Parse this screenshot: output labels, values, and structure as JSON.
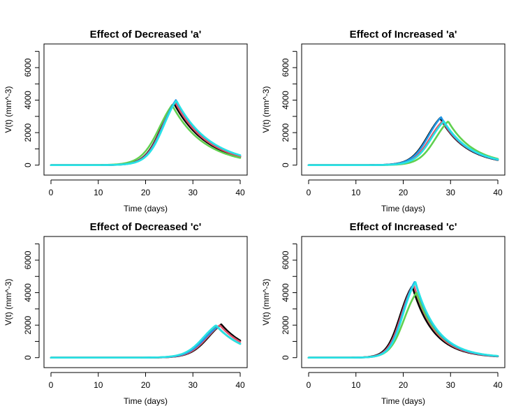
{
  "colors": {
    "black": "#000000",
    "red": "#DF536B",
    "green": "#61D04F",
    "blue": "#2297E6",
    "cyan": "#28E2E5"
  },
  "chart_data": [
    {
      "type": "line",
      "title": "Effect of Decreased 'a'",
      "xlabel": "Time (days)",
      "ylabel": "V(t) (mm^-3)",
      "xlim": [
        0,
        40
      ],
      "ylim": [
        0,
        7000
      ],
      "xticks": [
        0,
        10,
        20,
        30,
        40
      ],
      "yticks": [
        0,
        2000,
        4000,
        6000
      ],
      "grid": false,
      "series": [
        {
          "color": "#000000",
          "peak_x": 26.0,
          "peak_y": 3800,
          "k_rise": 0.55,
          "tau": 7.0
        },
        {
          "color": "#DF536B",
          "peak_x": 26.2,
          "peak_y": 3900,
          "k_rise": 0.55,
          "tau": 7.0
        },
        {
          "color": "#61D04F",
          "peak_x": 25.6,
          "peak_y": 3700,
          "k_rise": 0.5,
          "tau": 6.8
        },
        {
          "color": "#2297E6",
          "peak_x": 26.4,
          "peak_y": 4000,
          "k_rise": 0.55,
          "tau": 7.2
        },
        {
          "color": "#28E2E5",
          "peak_x": 26.5,
          "peak_y": 3980,
          "k_rise": 0.55,
          "tau": 7.2
        }
      ]
    },
    {
      "type": "line",
      "title": "Effect of Increased 'a'",
      "xlabel": "Time (days)",
      "ylabel": "V(t) (mm^-3)",
      "xlim": [
        0,
        40
      ],
      "ylim": [
        0,
        7000
      ],
      "xticks": [
        0,
        10,
        20,
        30,
        40
      ],
      "yticks": [
        0,
        2000,
        4000,
        6000
      ],
      "grid": false,
      "series": [
        {
          "color": "#000000",
          "peak_x": 27.8,
          "peak_y": 2900,
          "k_rise": 0.55,
          "tau": 5.5
        },
        {
          "color": "#DF536B",
          "peak_x": 28.3,
          "peak_y": 2700,
          "k_rise": 0.55,
          "tau": 5.6
        },
        {
          "color": "#61D04F",
          "peak_x": 29.5,
          "peak_y": 2700,
          "k_rise": 0.55,
          "tau": 5.4
        },
        {
          "color": "#2297E6",
          "peak_x": 28.0,
          "peak_y": 2950,
          "k_rise": 0.55,
          "tau": 5.5
        },
        {
          "color": "#28E2E5",
          "peak_x": 28.6,
          "peak_y": 2700,
          "k_rise": 0.55,
          "tau": 5.6
        }
      ]
    },
    {
      "type": "line",
      "title": "Effect of Decreased 'c'",
      "xlabel": "Time (days)",
      "ylabel": "V(t) (mm^-3)",
      "xlim": [
        0,
        40
      ],
      "ylim": [
        0,
        7000
      ],
      "xticks": [
        0,
        10,
        20,
        30,
        40
      ],
      "yticks": [
        0,
        2000,
        4000,
        6000
      ],
      "grid": false,
      "series": [
        {
          "color": "#000000",
          "peak_x": 36.0,
          "peak_y": 2050,
          "k_rise": 0.5,
          "tau": 6.0
        },
        {
          "color": "#DF536B",
          "peak_x": 35.7,
          "peak_y": 2000,
          "k_rise": 0.5,
          "tau": 6.0
        },
        {
          "color": "#61D04F",
          "peak_x": 35.0,
          "peak_y": 1950,
          "k_rise": 0.5,
          "tau": 6.0
        },
        {
          "color": "#2297E6",
          "peak_x": 35.2,
          "peak_y": 1900,
          "k_rise": 0.5,
          "tau": 6.0
        },
        {
          "color": "#28E2E5",
          "peak_x": 34.9,
          "peak_y": 2000,
          "k_rise": 0.5,
          "tau": 6.0
        }
      ]
    },
    {
      "type": "line",
      "title": "Effect of Increased 'c'",
      "xlabel": "Time (days)",
      "ylabel": "V(t) (mm^-3)",
      "xlim": [
        0,
        40
      ],
      "ylim": [
        0,
        7000
      ],
      "xticks": [
        0,
        10,
        20,
        30,
        40
      ],
      "yticks": [
        0,
        2000,
        4000,
        6000
      ],
      "grid": false,
      "series": [
        {
          "color": "#000000",
          "peak_x": 21.9,
          "peak_y": 4400,
          "k_rise": 0.7,
          "tau": 4.5
        },
        {
          "color": "#DF536B",
          "peak_x": 22.2,
          "peak_y": 4500,
          "k_rise": 0.7,
          "tau": 4.5
        },
        {
          "color": "#61D04F",
          "peak_x": 22.8,
          "peak_y": 4000,
          "k_rise": 0.65,
          "tau": 4.7
        },
        {
          "color": "#2297E6",
          "peak_x": 22.5,
          "peak_y": 4700,
          "k_rise": 0.7,
          "tau": 4.5
        },
        {
          "color": "#28E2E5",
          "peak_x": 22.6,
          "peak_y": 4650,
          "k_rise": 0.7,
          "tau": 4.6
        }
      ]
    }
  ]
}
